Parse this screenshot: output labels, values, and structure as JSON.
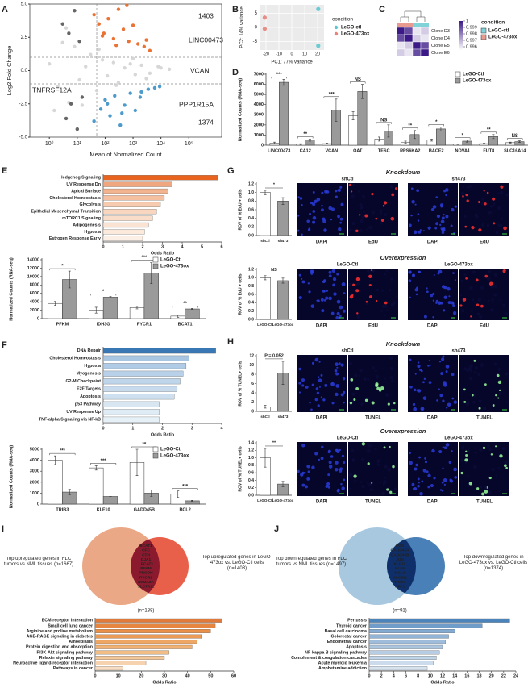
{
  "chart_data": [
    {
      "type": "scatter",
      "panel": "A",
      "xlabel": "Mean of Normalized Count",
      "ylabel": "Log2 Fold Change",
      "xscale": "log",
      "xlim": [
        0.2,
        1500000
      ],
      "xticks": [
        {
          "value": 1,
          "label": "10⁰"
        },
        {
          "value": 10,
          "label": "10¹"
        },
        {
          "value": 100,
          "label": "10²"
        },
        {
          "value": 1000,
          "label": "10³"
        },
        {
          "value": 10000,
          "label": "10⁴"
        },
        {
          "value": 100000,
          "label": "10⁵"
        }
      ],
      "ylim": [
        -5,
        5
      ],
      "yticks": [
        {
          "value": -5,
          "label": "-5.0"
        },
        -2.5,
        {
          "value": 0,
          "label": "0.0"
        },
        2.5,
        {
          "value": 5,
          "label": "5.0"
        }
      ],
      "reference_lines": {
        "x": [
          50
        ],
        "y": [
          1,
          -1
        ]
      },
      "series": [
        {
          "color": "#d3d3d3",
          "x": [
            1,
            2,
            3,
            5,
            8,
            12,
            20,
            30,
            50,
            80,
            120,
            200,
            300,
            500,
            800,
            1200,
            2000,
            4000,
            8000,
            20000,
            1.5,
            4,
            15,
            60,
            250,
            1000,
            3000,
            10000
          ],
          "y": [
            0.5,
            -1.2,
            2.1,
            -2.4,
            1.8,
            -0.7,
            0.3,
            1.2,
            -1.5,
            0.8,
            -0.4,
            0.6,
            -0.9,
            0.2,
            0.5,
            -0.3,
            0.4,
            -0.2,
            0.3,
            0.1,
            -3.0,
            3.2,
            -2.6,
            1.6,
            -1.1,
            0.9,
            -0.6,
            0.2
          ]
        },
        {
          "color": "#e8641e",
          "x": [
            40,
            60,
            90,
            130,
            200,
            300,
            450,
            700,
            1000,
            1500,
            2500,
            4000,
            80,
            250,
            600,
            3000
          ],
          "y": [
            4.2,
            3.5,
            2.8,
            3.9,
            2.4,
            4.6,
            3.1,
            2.2,
            3.4,
            2.0,
            1.8,
            1.5,
            2.6,
            1.9,
            4.9,
            2.3
          ]
        },
        {
          "color": "#3a8fc8",
          "x": [
            40,
            70,
            100,
            150,
            220,
            350,
            500,
            800,
            1200,
            2000,
            3500,
            6000,
            120,
            400,
            1800,
            9000
          ],
          "y": [
            -3.8,
            -2.9,
            -2.2,
            -3.4,
            -1.9,
            -4.1,
            -2.6,
            -1.7,
            -3.0,
            -1.6,
            -1.4,
            -1.3,
            -2.5,
            -3.2,
            -2.0,
            -1.2
          ]
        },
        {
          "color": "#555555",
          "x": [
            3,
            5,
            8,
            12,
            4,
            6,
            10,
            15
          ],
          "y": [
            3.5,
            2.8,
            4.5,
            2.2,
            -3.6,
            -2.5,
            -4.4,
            -2.0
          ]
        }
      ],
      "annotations": [
        {
          "text": "1403",
          "color": "#e8641e"
        },
        {
          "text": "LINC00473",
          "color": "#5cb82e"
        },
        {
          "text": "VCAN",
          "color": "#666666"
        },
        {
          "text": "TNFRSF12A",
          "color": "#777777"
        },
        {
          "text": "PPP1R15A",
          "color": "#777777"
        },
        {
          "text": "1374",
          "color": "#3a8fc8"
        }
      ]
    },
    {
      "type": "scatter",
      "panel": "B",
      "xlabel": "PC1: 77% variance",
      "ylabel": "PC2: 14% variance",
      "xlim": [
        -25,
        25
      ],
      "xticks": [
        -20,
        -10,
        0,
        10,
        20
      ],
      "ylim": [
        -8,
        8
      ],
      "yticks": [
        -5,
        0,
        5
      ],
      "grid": true,
      "background": "#ebebeb",
      "legend_title": "condition",
      "series": [
        {
          "name": "LeGO-ctl",
          "color": "#5bc8d0",
          "x": [
            20.5,
            20.5
          ],
          "y": [
            6.5,
            -6.5
          ]
        },
        {
          "name": "LeGO-473ox",
          "color": "#e8837a",
          "x": [
            -21,
            -21
          ],
          "y": [
            3.5,
            -0.5
          ]
        }
      ]
    },
    {
      "type": "heatmap",
      "panel": "C",
      "rows": [
        "Clone D3",
        "Clone D4",
        "Clone E5",
        "Clone E6"
      ],
      "values": [
        [
          1,
          0.999,
          0.996,
          0.9965
        ],
        [
          0.999,
          1,
          0.9965,
          0.996
        ],
        [
          0.996,
          0.9965,
          1,
          0.999
        ],
        [
          0.9965,
          0.996,
          0.999,
          1
        ]
      ],
      "colorlim": [
        0.9955,
        1
      ],
      "colors": [
        "#ffffff",
        "#3b1a87"
      ],
      "colorbar_ticks": [
        1,
        0.999,
        0.998,
        0.997,
        0.996
      ],
      "legend_title": "condition",
      "groups": [
        {
          "name": "LeGO-ctl",
          "color": "#7fd3d8"
        },
        {
          "name": "LeGO-473ox",
          "color": "#e89a90"
        }
      ],
      "column_groups": [
        1,
        1,
        0,
        0
      ]
    },
    {
      "type": "bar",
      "panel": "D",
      "ylabel": "Normalized Counts (RNA-seq)",
      "categories": [
        "LINC00473",
        "CA12",
        "VCAN",
        "OAT",
        "TESC",
        "RPS6KA2",
        "BACE2",
        "NOVA1",
        "FUT8",
        "SLC16A14"
      ],
      "ylim": [
        0,
        7000
      ],
      "yticks": [
        0,
        1000,
        2000,
        3000,
        4000,
        5000,
        6000,
        7000
      ],
      "series": [
        {
          "name": "LeGO-Ctl",
          "color": "#ffffff",
          "values": [
            200,
            100,
            150,
            2900,
            600,
            300,
            500,
            100,
            150,
            250
          ],
          "errors": [
            100,
            50,
            50,
            400,
            200,
            100,
            100,
            30,
            50,
            50
          ]
        },
        {
          "name": "LeGO-473ox",
          "color": "#9a9a9a",
          "values": [
            6200,
            500,
            3450,
            5300,
            1400,
            1050,
            1600,
            400,
            850,
            350
          ],
          "errors": [
            300,
            100,
            1100,
            700,
            600,
            400,
            200,
            100,
            200,
            80
          ]
        }
      ],
      "significance": [
        "***",
        "**",
        "***",
        "NS",
        "NS",
        "**",
        "*",
        "*",
        "**",
        "NS"
      ]
    },
    {
      "type": "hbar",
      "panel": "E",
      "xlabel": "Odds Ratio",
      "categories": [
        "Hedgehog Signaling",
        "UV Response Dn",
        "Apical Surface",
        "Cholesterol Homeostasis",
        "Glycolysis",
        "Epithelial Mesenchymal Transition",
        "mTORC1 Signaling",
        "Adipogenesis",
        "Hypoxia",
        "Estrogen Response Early"
      ],
      "values": [
        5.8,
        3.5,
        3.3,
        3.1,
        2.9,
        2.7,
        2.5,
        2.3,
        2.1,
        2.0
      ],
      "xlim": [
        0,
        6
      ],
      "xticks": [
        0,
        1,
        2,
        3,
        4,
        5,
        6
      ],
      "colors": [
        "#e8641e",
        "#f0a77f",
        "#f2b48f",
        "#f4c09f",
        "#f6cbaf",
        "#f8d6bf",
        "#f9ddc9",
        "#fae3d3",
        "#fbe9dc",
        "#fcefe6"
      ]
    },
    {
      "type": "bar",
      "ylabel": "Normalized Counts (RNA-seq)",
      "categories": [
        "PFKM",
        "IDH3G",
        "PYCR1",
        "BCAT1"
      ],
      "ylim": [
        0,
        14000
      ],
      "yticks": [
        0,
        2000,
        4000,
        6000,
        8000,
        10000,
        12000,
        14000
      ],
      "series": [
        {
          "name": "LeGO-Ctl",
          "color": "#ffffff",
          "values": [
            3600,
            2000,
            2600,
            600
          ],
          "errors": [
            500,
            700,
            300,
            300
          ]
        },
        {
          "name": "LeGO-473ox",
          "color": "#9a9a9a",
          "values": [
            9300,
            5100,
            10800,
            2300
          ],
          "errors": [
            2000,
            200,
            2500,
            100
          ]
        }
      ],
      "significance": [
        "*",
        "*",
        "***",
        "**"
      ]
    },
    {
      "type": "hbar",
      "panel": "F",
      "xlabel": "Odds Ratio",
      "categories": [
        "DNA Repair",
        "Cholesterol Homeostasis",
        "Hypoxia",
        "Myogenesis",
        "G2-M Checkpoint",
        "E2F Targets",
        "Apoptosis",
        "p53 Pathway",
        "UV Response Up",
        "TNF-alpha Signaling via NF-kB"
      ],
      "values": [
        3.8,
        2.9,
        2.8,
        2.7,
        2.6,
        2.5,
        2.4,
        1.9,
        1.9,
        1.9
      ],
      "xlim": [
        0,
        4
      ],
      "xticks": [
        0,
        1,
        2,
        3,
        4
      ],
      "colors": [
        "#3a78b5",
        "#a8c6e2",
        "#b0cbe5",
        "#b8d1e8",
        "#bfd6ea",
        "#c7dbed",
        "#cee0ef",
        "#d8e6f2",
        "#dfebf5",
        "#e6f0f7"
      ]
    },
    {
      "type": "bar",
      "ylabel": "Normalized Counts (RNA-seq)",
      "categories": [
        "TRIB3",
        "KLF10",
        "GADD45B",
        "BCL2"
      ],
      "ylim": [
        0,
        5000
      ],
      "yticks": [
        0,
        1000,
        2000,
        3000,
        4000,
        5000
      ],
      "series": [
        {
          "name": "LeGO-Ctl",
          "color": "#ffffff",
          "values": [
            4000,
            3300,
            3800,
            900
          ],
          "errors": [
            400,
            200,
            1200,
            300
          ]
        },
        {
          "name": "LeGO-473ox",
          "color": "#9a9a9a",
          "values": [
            1100,
            700,
            1000,
            300
          ],
          "errors": [
            250,
            0,
            300,
            50
          ]
        }
      ],
      "significance": [
        "***",
        "***",
        "**",
        "***"
      ]
    },
    {
      "type": "bar",
      "panel": "G",
      "title": "Knockdown",
      "ylabel": "ROV of % EdU + cells",
      "categories": [
        "shCtl",
        "sh473"
      ],
      "values": [
        1.0,
        0.8
      ],
      "errors": [
        0.05,
        0.08
      ],
      "colors": [
        "#ffffff",
        "#9a9a9a"
      ],
      "significance": "*",
      "ylim": [
        0,
        1.2
      ],
      "yticks": [
        {
          "value": 0,
          "label": "0.0"
        },
        0.2,
        0.4,
        0.6,
        0.8,
        {
          "value": 1,
          "label": "1.0"
        },
        1.2
      ],
      "image_labels": [
        "shCtl",
        "sh473"
      ],
      "channels": [
        "DAPI",
        "EdU"
      ]
    },
    {
      "type": "bar",
      "title": "Overexpression",
      "ylabel": "ROV of % EdU + cells",
      "categories": [
        "LeGO-Ctl",
        "LeGO-473ox"
      ],
      "values": [
        1.0,
        0.93
      ],
      "errors": [
        0.05,
        0.06
      ],
      "colors": [
        "#ffffff",
        "#9a9a9a"
      ],
      "significance": "NS",
      "ylim": [
        0,
        1.2
      ],
      "yticks": [
        {
          "value": 0,
          "label": "0.0"
        },
        0.2,
        0.4,
        0.6,
        0.8,
        {
          "value": 1,
          "label": "1.0"
        },
        1.2
      ],
      "image_labels": [
        "LeGO-Ctl",
        "LeGO-473ox"
      ],
      "channels": [
        "DAPI",
        "EdU"
      ]
    },
    {
      "type": "bar",
      "panel": "H",
      "title": "Knockdown",
      "ylabel": "ROV of % TUNEL+ cells",
      "categories": [
        "shCtl",
        "sh473"
      ],
      "values": [
        1.0,
        8.3
      ],
      "errors": [
        0.3,
        2.5
      ],
      "colors": [
        "#ffffff",
        "#9a9a9a"
      ],
      "significance": "P = 0.052",
      "ylim": [
        0,
        12
      ],
      "yticks": [
        0,
        2,
        4,
        6,
        8,
        10,
        12
      ],
      "image_labels": [
        "shCtl",
        "sh473"
      ],
      "channels": [
        "DAPI",
        "TUNEL"
      ]
    },
    {
      "type": "bar",
      "title": "Overexpression",
      "ylabel": "ROV of % TUNEL+ cells",
      "categories": [
        "LeGO-Ctl",
        "LeGO-473ox"
      ],
      "values": [
        1.0,
        0.3
      ],
      "errors": [
        0.25,
        0.07
      ],
      "colors": [
        "#ffffff",
        "#9a9a9a"
      ],
      "significance": "**",
      "ylim": [
        0,
        1.4
      ],
      "yticks": [
        {
          "value": 0,
          "label": "0.0"
        },
        0.2,
        0.4,
        0.6,
        0.8,
        {
          "value": 1,
          "label": "1.0"
        },
        1.2,
        1.4
      ],
      "image_labels": [
        "LeGO-Ctl",
        "LeGO-473ox"
      ],
      "channels": [
        "DAPI",
        "TUNEL"
      ]
    },
    {
      "type": "hbar",
      "panel": "I",
      "xlabel": "Odds Ratio",
      "categories": [
        "ECM-receptor interaction",
        "Small cell lung cancer",
        "Arginine and proline metabolism",
        "AGE-RAGE signaling in diabetes",
        "Amoebiasis",
        "Protein digestion and absorption",
        "PI3K-Akt signaling pathway",
        "Relaxin signaling pathway",
        "Neuroactive ligand-receptor interaction",
        "Pathways in cancer"
      ],
      "values": [
        55,
        52,
        50,
        46,
        44,
        42,
        32,
        30,
        22,
        12
      ],
      "xlim": [
        0,
        60
      ],
      "xticks": [
        0,
        10,
        20,
        30,
        40,
        50,
        60
      ],
      "colors": [
        "#e07a3a",
        "#e5853f",
        "#e89048",
        "#eb9b56",
        "#eea664",
        "#f0b173",
        "#f2bc85",
        "#f4c799",
        "#f6d2ae",
        "#f8ddc3"
      ],
      "venn": {
        "left": "Top upregulated genes in FLC tumors vs NML tissues (n=1667)",
        "right": "Top upregulated genes in LeGO-473ox vs. LeGO-Ctl cells (n=1403)",
        "overlap": "(n=188)",
        "genes": [
          "BCAT1",
          "CFC",
          "CTH",
          "DJA1",
          "LPCAT1",
          "PFKM",
          "PRODH",
          "PYCR1",
          "SEMA3A",
          "SLC7A11"
        ],
        "colors": [
          "#eaa886",
          "#e8604a",
          "#8b1a2e"
        ]
      }
    },
    {
      "type": "hbar",
      "panel": "J",
      "xlabel": "Odds Ratio",
      "categories": [
        "Pertussis",
        "Thyroid cancer",
        "Basal cell carcinoma",
        "Colorectal cancer",
        "Endometrial cancer",
        "Apoptosis",
        "NF-kappa B signaling pathway",
        "Complement & coagulation cascades",
        "Acute myeloid leukemia",
        "Amphetamine addiction"
      ],
      "values": [
        23,
        18.5,
        14,
        13,
        12.5,
        12,
        11.5,
        11,
        10.5,
        9.5
      ],
      "xlim": [
        0,
        24
      ],
      "xticks": [
        0,
        2,
        4,
        6,
        8,
        10,
        12,
        14,
        16,
        18,
        20,
        22,
        24
      ],
      "colors": [
        "#4a84bb",
        "#6f9cc9",
        "#83aad1",
        "#92b4d6",
        "#9fbddb",
        "#abc5df",
        "#b6cde3",
        "#c0d4e7",
        "#cbdbeb",
        "#d6e3ef"
      ],
      "venn": {
        "left": "Top downregulated genes in FLC tumors vs NML tissues (n=1497)",
        "right": "Top downregulated genes in LeGO-473ox vs. LeGO-Ctl cells (n=1374)",
        "overlap": "(n=91)",
        "genes": [
          "FOS",
          "GADD45A",
          "GADD45B",
          "JUN",
          "KLF10",
          "KLF6",
          "MCL1",
          "OSGIN1",
          "TRIB3",
          "UFP1"
        ],
        "colors": [
          "#a8c8e0",
          "#4a80b8",
          "#0f2f6a"
        ]
      }
    }
  ]
}
